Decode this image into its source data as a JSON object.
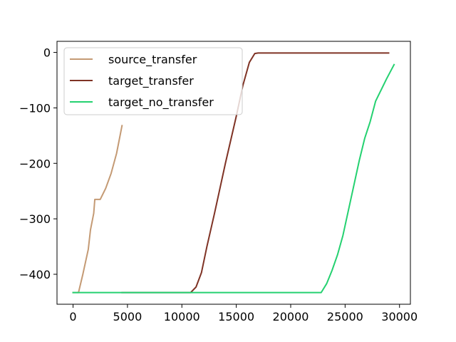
{
  "chart_data": {
    "type": "line",
    "title": "",
    "xlabel": "",
    "ylabel": "",
    "xlim": [
      -1475,
      31000
    ],
    "ylim": [
      -454,
      20
    ],
    "xticks": [
      0,
      5000,
      10000,
      15000,
      20000,
      25000,
      30000
    ],
    "xtick_labels": [
      "0",
      "5000",
      "10000",
      "15000",
      "20000",
      "25000",
      "30000"
    ],
    "yticks": [
      0,
      -100,
      -200,
      -300,
      -400
    ],
    "ytick_labels": [
      "0",
      "−100",
      "−200",
      "−300",
      "−400"
    ],
    "grid": false,
    "legend_position": "top-left",
    "series": [
      {
        "name": "source_transfer",
        "color": "#c49a74",
        "points": [
          [
            0,
            -433
          ],
          [
            500,
            -433
          ],
          [
            900,
            -400
          ],
          [
            1400,
            -355
          ],
          [
            1600,
            -320
          ],
          [
            1900,
            -290
          ],
          [
            2000,
            -265
          ],
          [
            2500,
            -265
          ],
          [
            3000,
            -245
          ],
          [
            3500,
            -218
          ],
          [
            4000,
            -182
          ],
          [
            4500,
            -132
          ]
        ]
      },
      {
        "name": "target_transfer",
        "color": "#7f3325",
        "points": [
          [
            4500,
            -433
          ],
          [
            10800,
            -433
          ],
          [
            11300,
            -423
          ],
          [
            11800,
            -397
          ],
          [
            12300,
            -350
          ],
          [
            13000,
            -290
          ],
          [
            14000,
            -200
          ],
          [
            15000,
            -115
          ],
          [
            15600,
            -60
          ],
          [
            16200,
            -18
          ],
          [
            16700,
            -2
          ],
          [
            17000,
            -1
          ],
          [
            19000,
            -1
          ],
          [
            29000,
            -1
          ]
        ]
      },
      {
        "name": "target_no_transfer",
        "color": "#24d170",
        "points": [
          [
            0,
            -433
          ],
          [
            22800,
            -433
          ],
          [
            23300,
            -417
          ],
          [
            23800,
            -393
          ],
          [
            24300,
            -365
          ],
          [
            24800,
            -330
          ],
          [
            25300,
            -285
          ],
          [
            25800,
            -240
          ],
          [
            26300,
            -195
          ],
          [
            26800,
            -155
          ],
          [
            27300,
            -125
          ],
          [
            27800,
            -88
          ],
          [
            28300,
            -68
          ],
          [
            28800,
            -48
          ],
          [
            29500,
            -22
          ]
        ]
      }
    ]
  }
}
